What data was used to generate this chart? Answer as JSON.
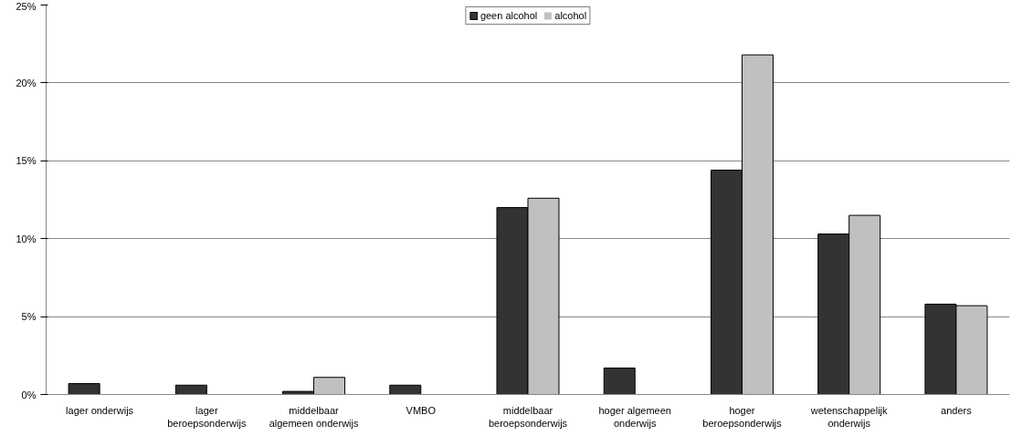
{
  "chart_data": {
    "type": "bar",
    "categories": [
      "lager onderwijs",
      "lager\nberoepsonderwijs",
      "middelbaar\nalgemeen onderwijs",
      "VMBO",
      "middelbaar\nberoepsonderwijs",
      "hoger algemeen\nonderwijs",
      "hoger\nberoepsonderwijs",
      "wetenschappelijk\nonderwijs",
      "anders"
    ],
    "series": [
      {
        "name": "geen alcohol",
        "color": "#333333",
        "values": [
          0.7,
          0.6,
          0.2,
          0.6,
          12.0,
          1.7,
          14.4,
          10.3,
          5.8
        ]
      },
      {
        "name": "alcohol",
        "color": "#c0c0c0",
        "values": [
          0,
          0,
          1.1,
          0,
          12.6,
          0,
          21.8,
          11.5,
          5.7
        ]
      }
    ],
    "ylim": [
      0,
      25
    ],
    "yticks": [
      {
        "value": 0,
        "label": "0%"
      },
      {
        "value": 5,
        "label": "5%"
      },
      {
        "value": 10,
        "label": "10%"
      },
      {
        "value": 15,
        "label": "15%"
      },
      {
        "value": 20,
        "label": "20%"
      },
      {
        "value": 25,
        "label": "25%"
      }
    ],
    "grid": "y",
    "legend": "top"
  }
}
